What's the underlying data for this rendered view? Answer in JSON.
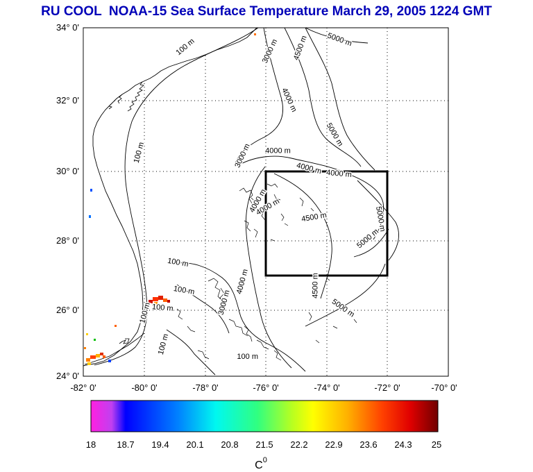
{
  "title": "RU COOL  NOAA-15 Sea Surface Temperature March 29, 2005 1224 GMT",
  "map": {
    "projection": "lat-lon",
    "lon_range": [
      -82,
      -70
    ],
    "lat_range": [
      24,
      34
    ],
    "grid": "dotted",
    "lat_ticks": [
      "24° 0'",
      "26° 0'",
      "28° 0'",
      "30° 0'",
      "32° 0'",
      "34° 0'"
    ],
    "lon_ticks": [
      "-82° 0'",
      "-80° 0'",
      "-78° 0'",
      "-76° 0'",
      "-74° 0'",
      "-72° 0'",
      "-70° 0'"
    ],
    "study_box": {
      "lon_min": -76,
      "lon_max": -72,
      "lat_min": 27,
      "lat_max": 30
    },
    "contour_labels": [
      {
        "text": "100 m",
        "lon": -78.6,
        "lat": 33.4,
        "rot": -40
      },
      {
        "text": "3000 m",
        "lon": -75.8,
        "lat": 33.3,
        "rot": -65
      },
      {
        "text": "4500 m",
        "lon": -74.8,
        "lat": 33.4,
        "rot": -70
      },
      {
        "text": "5000 m",
        "lon": -73.6,
        "lat": 33.6,
        "rot": 20
      },
      {
        "text": "4000 m",
        "lon": -75.3,
        "lat": 31.9,
        "rot": 65
      },
      {
        "text": "5000 m",
        "lon": -73.8,
        "lat": 30.9,
        "rot": 60
      },
      {
        "text": "100 m",
        "lon": -80.1,
        "lat": 30.4,
        "rot": -75
      },
      {
        "text": "3000 m",
        "lon": -76.7,
        "lat": 30.3,
        "rot": -65
      },
      {
        "text": "4000 m",
        "lon": -75.6,
        "lat": 30.4,
        "rot": 0
      },
      {
        "text": "4000 m",
        "lon": -74.6,
        "lat": 29.9,
        "rot": 15
      },
      {
        "text": "4000 m",
        "lon": -73.6,
        "lat": 29.75,
        "rot": 5
      },
      {
        "text": "4000 m",
        "lon": -76.2,
        "lat": 29.0,
        "rot": -60
      },
      {
        "text": "4000 m",
        "lon": -75.9,
        "lat": 28.8,
        "rot": -30
      },
      {
        "text": "4500 m",
        "lon": -74.4,
        "lat": 28.5,
        "rot": -10
      },
      {
        "text": "5000 m",
        "lon": -72.6,
        "lat": 27.9,
        "rot": -40
      },
      {
        "text": "5000 m",
        "lon": -72.3,
        "lat": 28.5,
        "rot": 80
      },
      {
        "text": "100 m",
        "lon": -78.9,
        "lat": 27.2,
        "rot": 10
      },
      {
        "text": "100 m",
        "lon": -78.7,
        "lat": 26.4,
        "rot": 10
      },
      {
        "text": "100 m",
        "lon": -79.4,
        "lat": 25.9,
        "rot": 5
      },
      {
        "text": "100 m",
        "lon": -79.9,
        "lat": 25.8,
        "rot": -75
      },
      {
        "text": "100 m",
        "lon": -79.3,
        "lat": 24.9,
        "rot": -75
      },
      {
        "text": "4000 m",
        "lon": -76.7,
        "lat": 26.7,
        "rot": -75
      },
      {
        "text": "3000 m",
        "lon": -77.3,
        "lat": 26.1,
        "rot": -75
      },
      {
        "text": "4500 m",
        "lon": -74.3,
        "lat": 26.6,
        "rot": -90
      },
      {
        "text": "5000 m",
        "lon": -73.5,
        "lat": 25.9,
        "rot": 35
      },
      {
        "text": "100 m",
        "lon": -76.6,
        "lat": 24.5,
        "rot": 0
      }
    ]
  },
  "colorbar": {
    "unit": "C",
    "unit_superscript": "0",
    "ticks": [
      "18",
      "18.7",
      "19.4",
      "20.1",
      "20.8",
      "21.5",
      "22.2",
      "22.9",
      "23.6",
      "24.3",
      "25"
    ],
    "stops": [
      "#ff20e0",
      "#0000ff",
      "#00b0ff",
      "#00ffe8",
      "#30ff70",
      "#b0ff20",
      "#ffff00",
      "#ffb000",
      "#ff5000",
      "#ff0000",
      "#a00000",
      "#700000"
    ]
  }
}
